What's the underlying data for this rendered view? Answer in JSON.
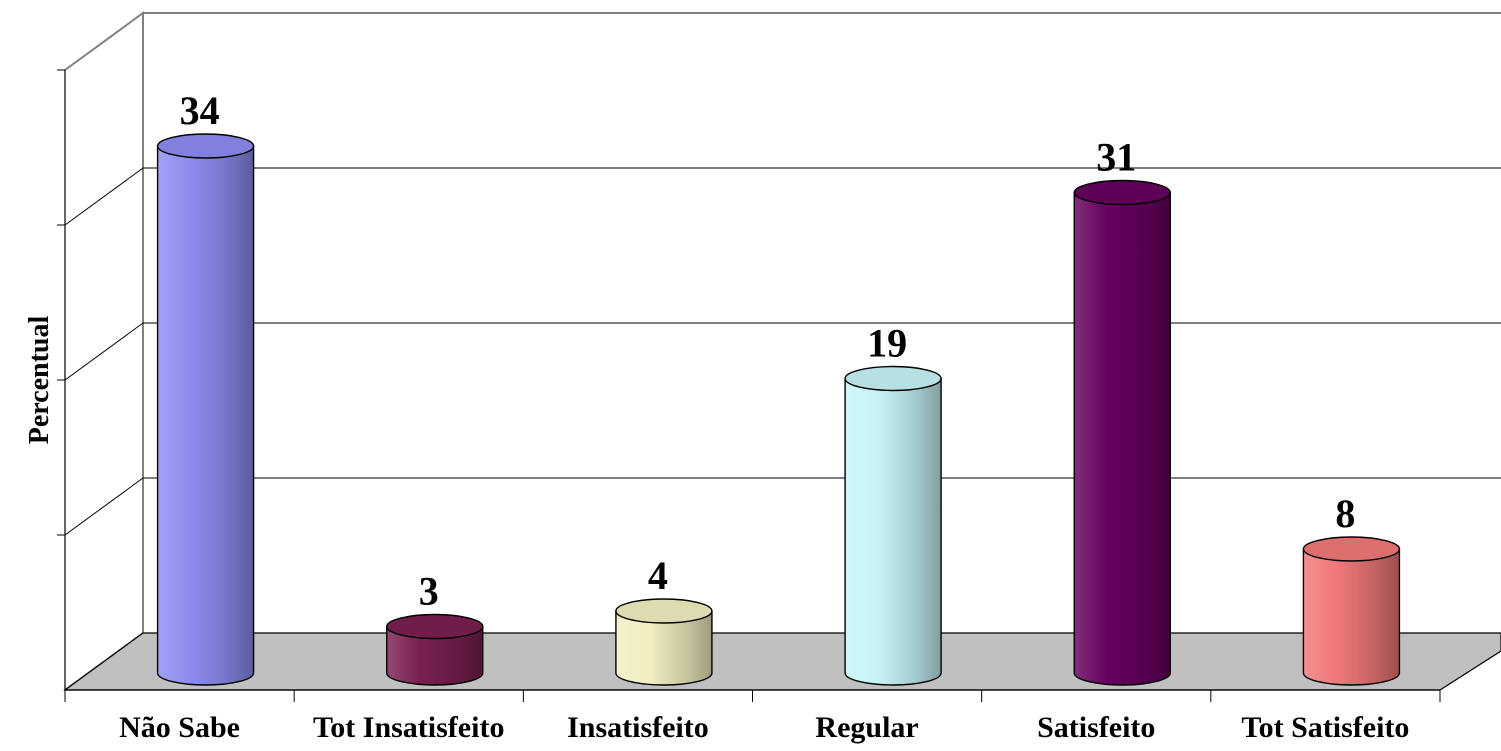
{
  "chart_data": {
    "type": "bar",
    "style": "3d-cylinder",
    "categories": [
      "Não Sabe",
      "Tot Insatisfeito",
      "Insatisfeito",
      "Regular",
      "Satisfeito",
      "Tot Satisfeito"
    ],
    "values": [
      34,
      3,
      4,
      19,
      31,
      8
    ],
    "value_labels": [
      "34",
      "3",
      "4",
      "19",
      "31",
      "8"
    ],
    "bar_colors": [
      "#8C8CF0",
      "#7A2050",
      "#F2EEC0",
      "#C6F4F6",
      "#66005E",
      "#F07878"
    ],
    "ylabel": "Percentual",
    "xlabel": "",
    "title": "",
    "ylim": [
      0,
      40
    ],
    "grid": true,
    "legend": "none",
    "colors": {
      "floor": "#C0C0C0",
      "grid": "#000000",
      "background": "#FFFFFF"
    }
  }
}
